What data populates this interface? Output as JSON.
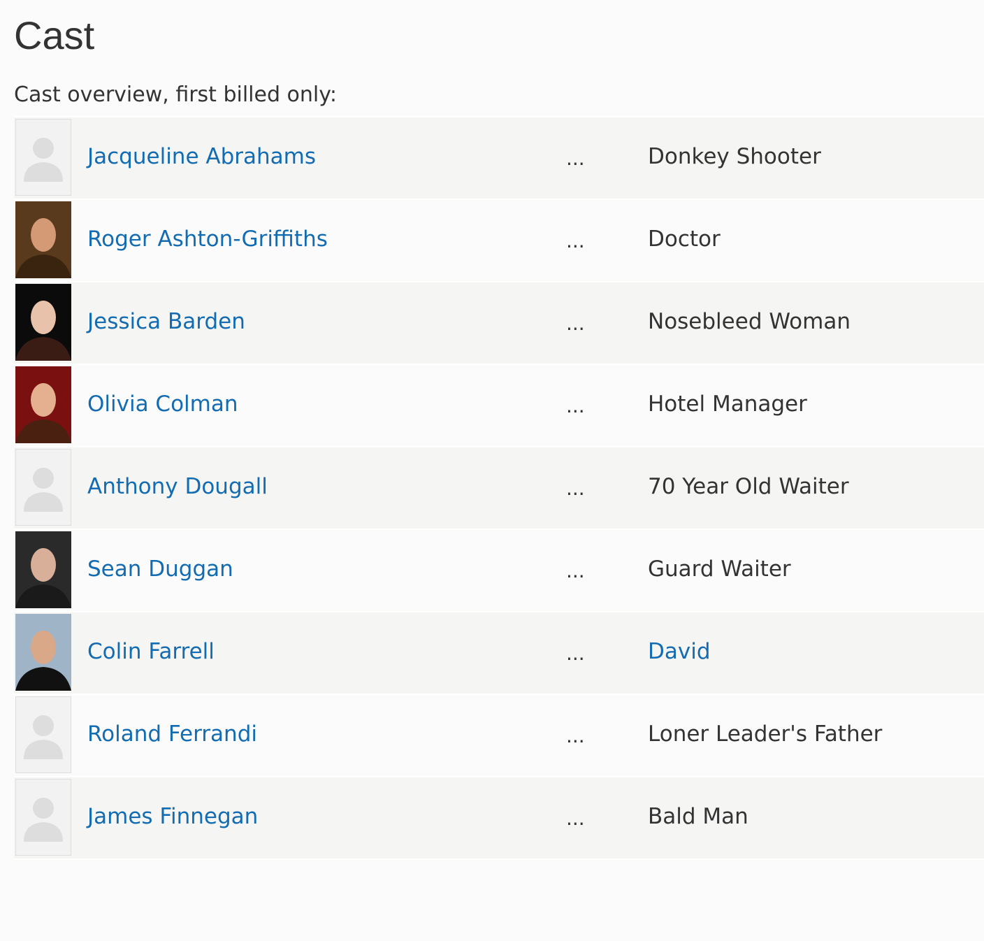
{
  "header": {
    "title": "Cast",
    "subtitle": "Cast overview, first billed only:"
  },
  "separator": "...",
  "cast": [
    {
      "name": "Jacqueline Abrahams",
      "character": "Donkey Shooter"
    },
    {
      "name": "Roger Ashton-Griffiths",
      "character": "Doctor"
    },
    {
      "name": "Jessica Barden",
      "character": "Nosebleed Woman"
    },
    {
      "name": "Olivia Colman",
      "character": "Hotel Manager"
    },
    {
      "name": "Anthony Dougall",
      "character": "70 Year Old Waiter"
    },
    {
      "name": "Sean Duggan",
      "character": "Guard Waiter"
    },
    {
      "name": "Colin Farrell",
      "character": "David",
      "character_is_link": true
    },
    {
      "name": "Roland Ferrandi",
      "character": "Loner Leader's Father"
    },
    {
      "name": "James Finnegan",
      "character": "Bald Man"
    }
  ]
}
